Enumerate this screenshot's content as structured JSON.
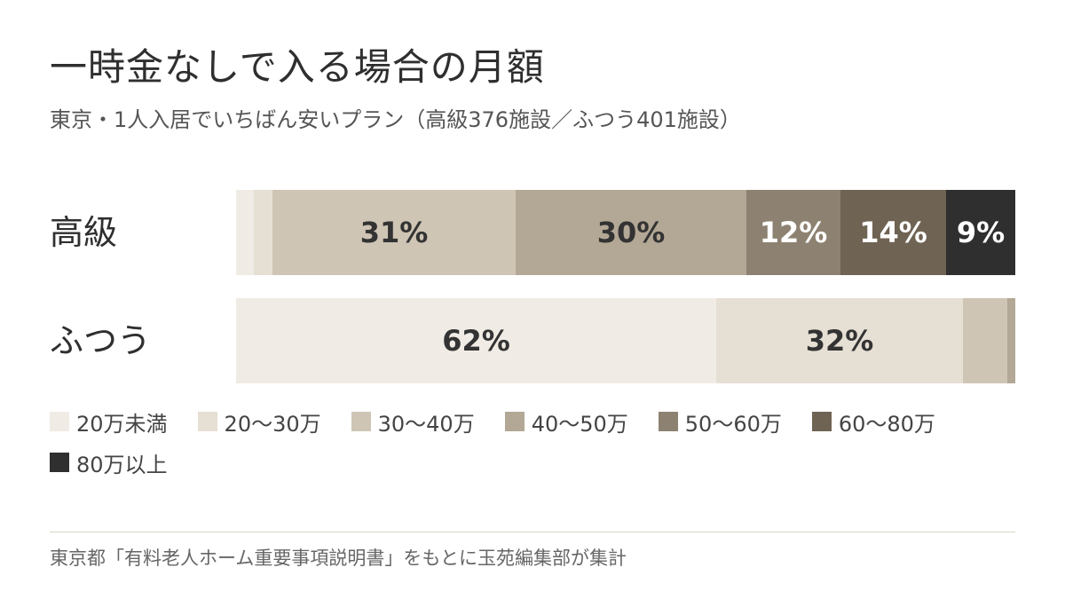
{
  "title": "一時金なしで入る場合の月額",
  "subtitle": "東京・1人入居でいちばん安いプラン（高級376施設／ふつう401施設）",
  "source": "東京都「有料老人ホーム重要事項説明書」をもとに玉苑編集部が集計",
  "chart_data": {
    "type": "bar",
    "orientation": "horizontal",
    "stacked": true,
    "normalized": true,
    "title": "一時金なしで入る場合の月額",
    "subtitle": "東京・1人入居でいちばん安いプラン（高級376施設／ふつう401施設）",
    "categories": [
      "高級",
      "ふつう"
    ],
    "unit": "%",
    "series": [
      {
        "name": "20万未満",
        "color": "#f0ece5",
        "values": [
          2.3,
          61.6
        ],
        "labels": [
          "",
          "62%"
        ],
        "label_color": "#333333"
      },
      {
        "name": "20〜30万",
        "color": "#e6dfd4",
        "values": [
          2.4,
          31.7
        ],
        "labels": [
          "",
          "32%"
        ],
        "label_color": "#333333"
      },
      {
        "name": "30〜40万",
        "color": "#cfc5b5",
        "values": [
          31.2,
          5.7
        ],
        "labels": [
          "31%",
          ""
        ],
        "label_color": "#333333"
      },
      {
        "name": "40〜50万",
        "color": "#b3a895",
        "values": [
          29.6,
          1.0
        ],
        "labels": [
          "30%",
          ""
        ],
        "label_color": "#333333"
      },
      {
        "name": "50〜60万",
        "color": "#8d8271",
        "values": [
          12.1,
          0
        ],
        "labels": [
          "12%",
          ""
        ],
        "label_color": "#ffffff"
      },
      {
        "name": "60〜80万",
        "color": "#6f6354",
        "values": [
          13.6,
          0
        ],
        "labels": [
          "14%",
          ""
        ],
        "label_color": "#ffffff"
      },
      {
        "name": "80万以上",
        "color": "#2f2f2f",
        "values": [
          8.8,
          0
        ],
        "labels": [
          "9%",
          ""
        ],
        "label_color": "#ffffff"
      }
    ],
    "legend_position": "bottom"
  }
}
